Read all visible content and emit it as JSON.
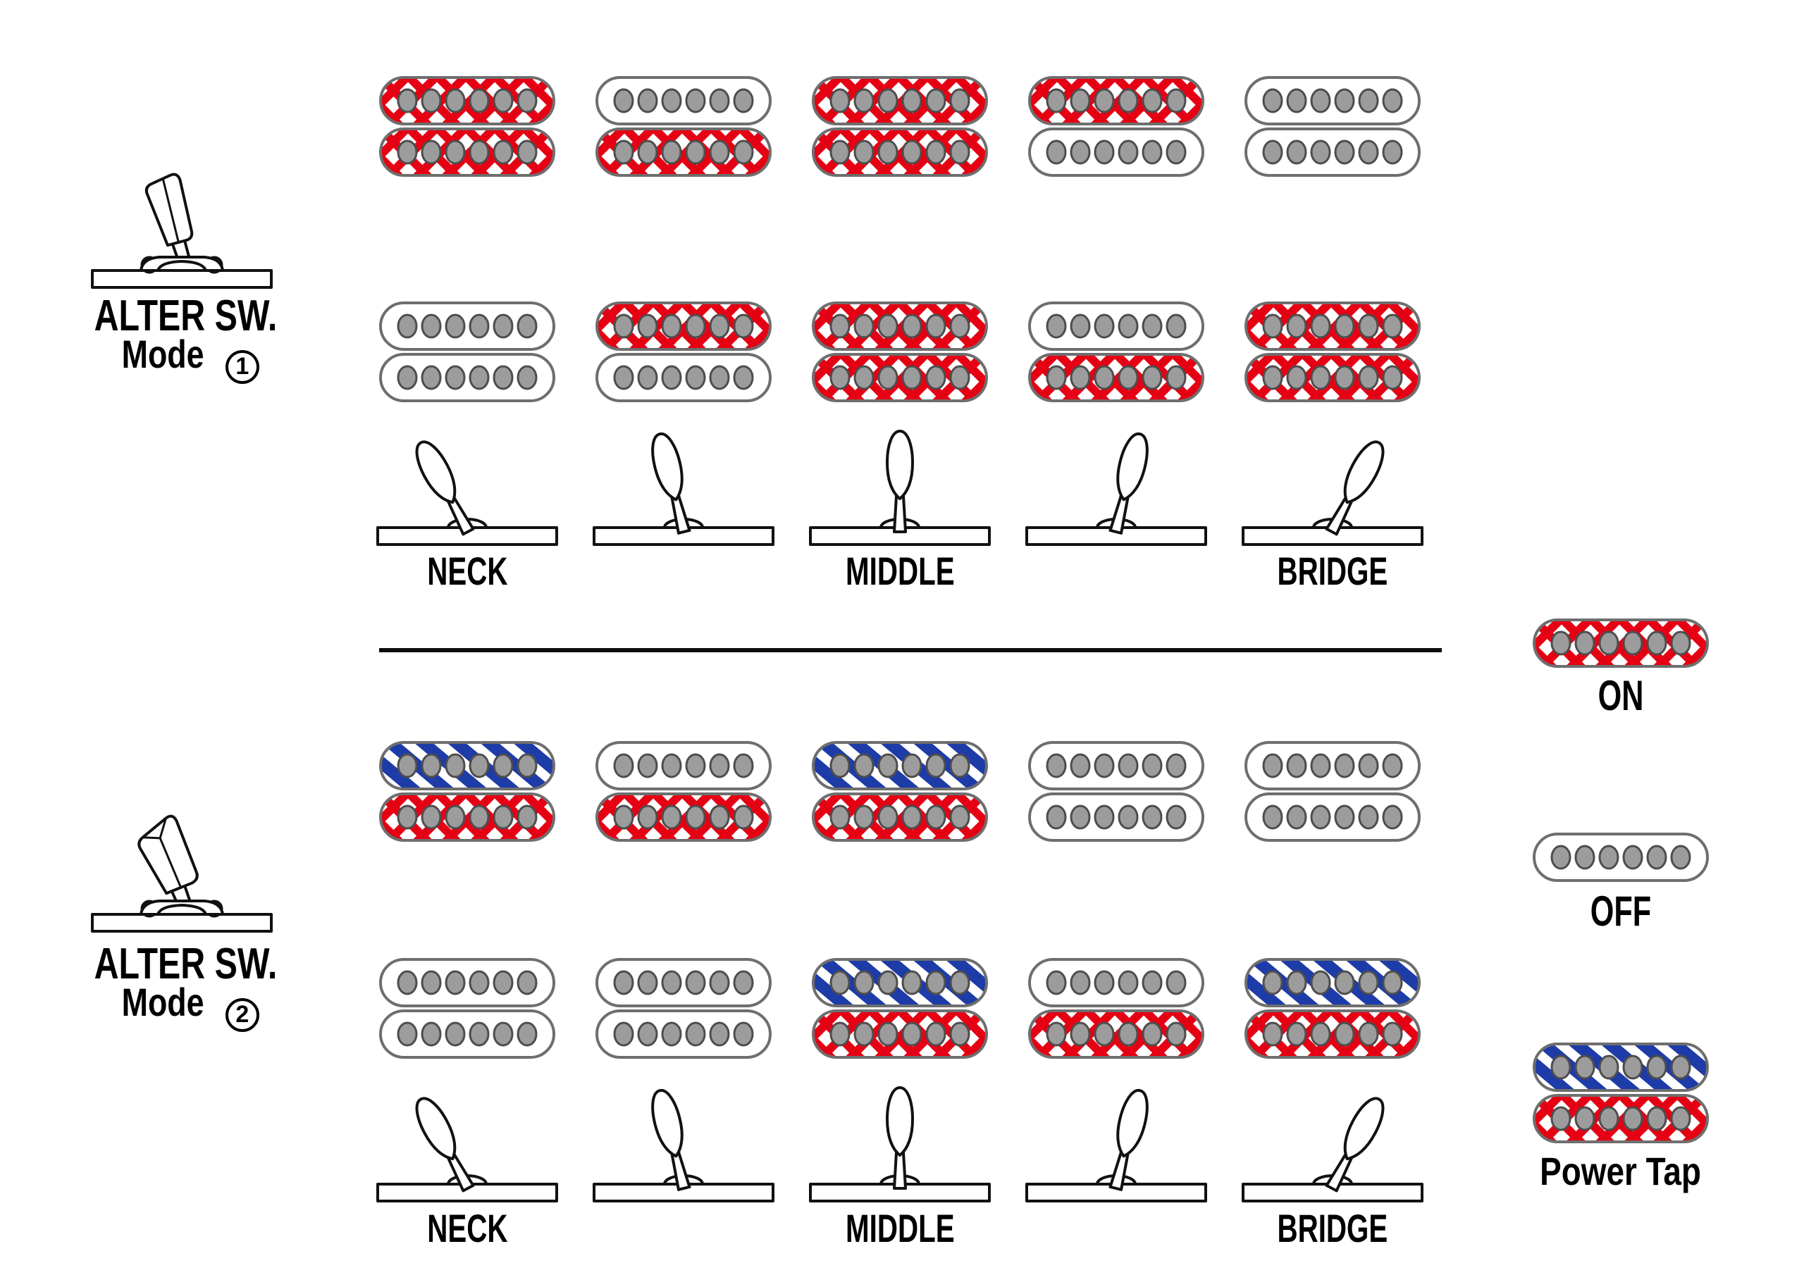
{
  "colors": {
    "coil_on_red": "#e60013",
    "coil_tap_blue": "#1e3ca8",
    "coil_outline": "#6e6e6e",
    "pole_fill": "#9c9c9c",
    "pole_ring": "#4d4d4d",
    "line_black": "#111111"
  },
  "icons": {
    "mode_switch": "toggle-lever-icon",
    "position_switch": "selector-lever-icon"
  },
  "coil_states": [
    "on",
    "off",
    "tap"
  ],
  "sections": [
    {
      "name": "ALTER SW.",
      "mode_label": "Mode",
      "mode_number": "1",
      "positions": [
        {
          "name": "neck",
          "label": "NECK",
          "tilt": -28,
          "neck_coils": [
            "on",
            "on"
          ],
          "bridge_coils": [
            "off",
            "off"
          ]
        },
        {
          "name": "neck-middle",
          "label": "",
          "tilt": -14,
          "neck_coils": [
            "off",
            "on"
          ],
          "bridge_coils": [
            "on",
            "off"
          ]
        },
        {
          "name": "middle",
          "label": "MIDDLE",
          "tilt": 0,
          "neck_coils": [
            "on",
            "on"
          ],
          "bridge_coils": [
            "on",
            "on"
          ]
        },
        {
          "name": "middle-bridge",
          "label": "",
          "tilt": 14,
          "neck_coils": [
            "on",
            "off"
          ],
          "bridge_coils": [
            "off",
            "on"
          ]
        },
        {
          "name": "bridge",
          "label": "BRIDGE",
          "tilt": 28,
          "neck_coils": [
            "off",
            "off"
          ],
          "bridge_coils": [
            "on",
            "on"
          ]
        }
      ]
    },
    {
      "name": "ALTER SW.",
      "mode_label": "Mode",
      "mode_number": "2",
      "positions": [
        {
          "name": "neck",
          "label": "NECK",
          "tilt": -28,
          "neck_coils": [
            "tap",
            "on"
          ],
          "bridge_coils": [
            "off",
            "off"
          ]
        },
        {
          "name": "neck-middle",
          "label": "",
          "tilt": -14,
          "neck_coils": [
            "off",
            "on"
          ],
          "bridge_coils": [
            "off",
            "off"
          ]
        },
        {
          "name": "middle",
          "label": "MIDDLE",
          "tilt": 0,
          "neck_coils": [
            "tap",
            "on"
          ],
          "bridge_coils": [
            "tap",
            "on"
          ]
        },
        {
          "name": "middle-bridge",
          "label": "",
          "tilt": 14,
          "neck_coils": [
            "off",
            "off"
          ],
          "bridge_coils": [
            "off",
            "on"
          ]
        },
        {
          "name": "bridge",
          "label": "BRIDGE",
          "tilt": 28,
          "neck_coils": [
            "off",
            "off"
          ],
          "bridge_coils": [
            "tap",
            "on"
          ]
        }
      ]
    }
  ],
  "legend": {
    "items": [
      {
        "label": "ON",
        "coils": [
          "on"
        ]
      },
      {
        "label": "OFF",
        "coils": [
          "off"
        ]
      },
      {
        "label": "Power Tap",
        "coils": [
          "tap",
          "on"
        ]
      }
    ]
  }
}
